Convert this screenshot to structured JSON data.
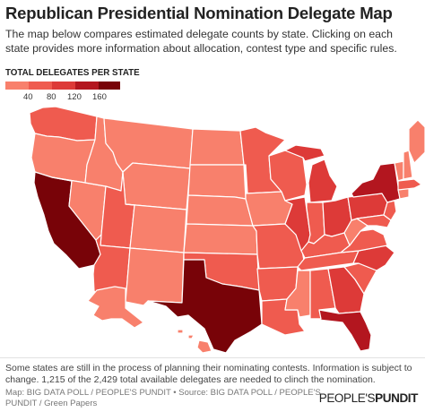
{
  "header": {
    "title": "Republican Presidential Nomination Delegate Map",
    "subtitle": "The map below compares estimated delegate counts by state. Clicking on each state provides more information about allocation, contest type and specific rules."
  },
  "legend": {
    "title": "TOTAL DELEGATES PER STATE",
    "ticks": [
      "40",
      "80",
      "120",
      "160"
    ],
    "colors": [
      "#f8806c",
      "#ef5b4f",
      "#dd3a38",
      "#b3161f",
      "#780308"
    ]
  },
  "map": {
    "states": {
      "WA": "#ef5b4f",
      "OR": "#f8806c",
      "CA": "#780308",
      "NV": "#f8806c",
      "ID": "#f8806c",
      "MT": "#f8806c",
      "WY": "#f8806c",
      "UT": "#ef5b4f",
      "AZ": "#ef5b4f",
      "NM": "#f8806c",
      "CO": "#f8806c",
      "ND": "#f8806c",
      "SD": "#f8806c",
      "NE": "#f8806c",
      "KS": "#f8806c",
      "OK": "#ef5b4f",
      "TX": "#780308",
      "MN": "#ef5b4f",
      "IA": "#f8806c",
      "MO": "#ef5b4f",
      "AR": "#ef5b4f",
      "LA": "#ef5b4f",
      "WI": "#ef5b4f",
      "IL": "#dd3a38",
      "MI": "#dd3a38",
      "IN": "#ef5b4f",
      "OH": "#dd3a38",
      "KY": "#ef5b4f",
      "TN": "#ef5b4f",
      "MS": "#f8806c",
      "AL": "#ef5b4f",
      "GA": "#dd3a38",
      "FL": "#b3161f",
      "SC": "#ef5b4f",
      "NC": "#dd3a38",
      "VA": "#ef5b4f",
      "WV": "#f8806c",
      "PA": "#dd3a38",
      "NY": "#b3161f",
      "VT": "#f8806c",
      "NH": "#f8806c",
      "ME": "#f8806c",
      "MA": "#ef5b4f",
      "CT": "#f8806c",
      "NJ": "#ef5b4f",
      "DE": "#f8806c",
      "MD": "#ef5b4f",
      "AK": "#f8806c",
      "HI": "#f8806c"
    }
  },
  "footer": {
    "note": "Some states are still in the process of planning their nominating contests. Information is subject to change. 1,215 of the 2,429 total available delegates are needed to clinch the nomination.",
    "source": "Map: BIG DATA POLL / PEOPLE'S PUNDIT • Source: BIG DATA POLL / PEOPLE'S PUNDIT / Green Papers",
    "brand_a": "PEOPLE'S",
    "brand_b": "PUNDIT"
  }
}
